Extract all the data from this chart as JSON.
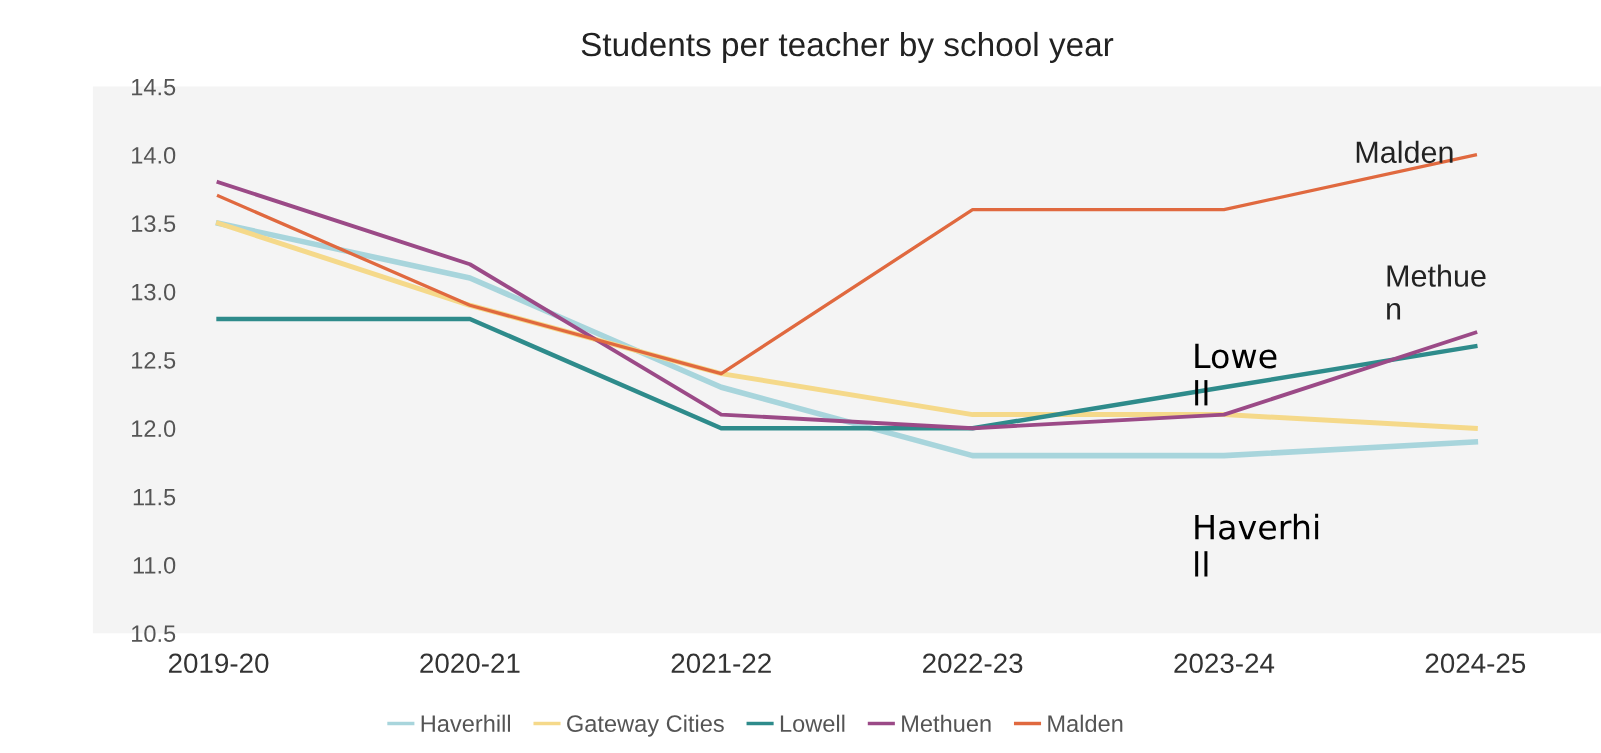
{
  "chart_data": {
    "type": "line",
    "title": "Students per teacher by school year",
    "categories": [
      "2019-20",
      "2020-21",
      "2021-22",
      "2022-23",
      "2023-24",
      "2024-25"
    ],
    "series": [
      {
        "name": "Haverhill",
        "color": "#a8d5dc",
        "values": [
          13.5,
          13.1,
          12.3,
          11.8,
          11.8,
          11.9
        ]
      },
      {
        "name": "Gateway Cities",
        "color": "#f5d98a",
        "values": [
          13.5,
          12.9,
          12.4,
          12.1,
          12.1,
          12.0
        ]
      },
      {
        "name": "Lowell",
        "color": "#2e8b8b",
        "values": [
          12.8,
          12.8,
          12.0,
          12.0,
          12.3,
          12.6
        ]
      },
      {
        "name": "Methuen",
        "color": "#9b4a87",
        "values": [
          13.8,
          13.2,
          12.1,
          12.0,
          12.1,
          12.7
        ]
      },
      {
        "name": "Malden",
        "color": "#e0693f",
        "values": [
          13.7,
          12.9,
          12.4,
          13.6,
          13.6,
          14.0
        ]
      }
    ],
    "annotations": [
      {
        "text": "Malden",
        "x": "2024-25",
        "y": 14.0
      },
      {
        "text": "Methue\nn",
        "x": "2024-25",
        "y": 12.7
      },
      {
        "text": "Lowe\nll",
        "x": "2023-24",
        "y": 12.3
      },
      {
        "text": "Haverhi\nll",
        "x": "2023-24",
        "y": 11.8
      }
    ],
    "ylim": [
      10.5,
      14.5
    ],
    "yticks": [
      {
        "value": 10.5,
        "label": "10.5"
      },
      {
        "value": 11,
        "label": "11.0"
      },
      {
        "value": 11.5,
        "label": "11.5"
      },
      {
        "value": 12,
        "label": "12.0"
      },
      {
        "value": 12.5,
        "label": "12.5"
      },
      {
        "value": 13,
        "label": "13.0"
      },
      {
        "value": 13.5,
        "label": "13.5"
      },
      {
        "value": 14,
        "label": "14.0"
      },
      {
        "value": 14.5,
        "label": "14.5"
      }
    ],
    "grid": false,
    "legend": "bottom",
    "marker": "none",
    "line_style": "solid"
  }
}
